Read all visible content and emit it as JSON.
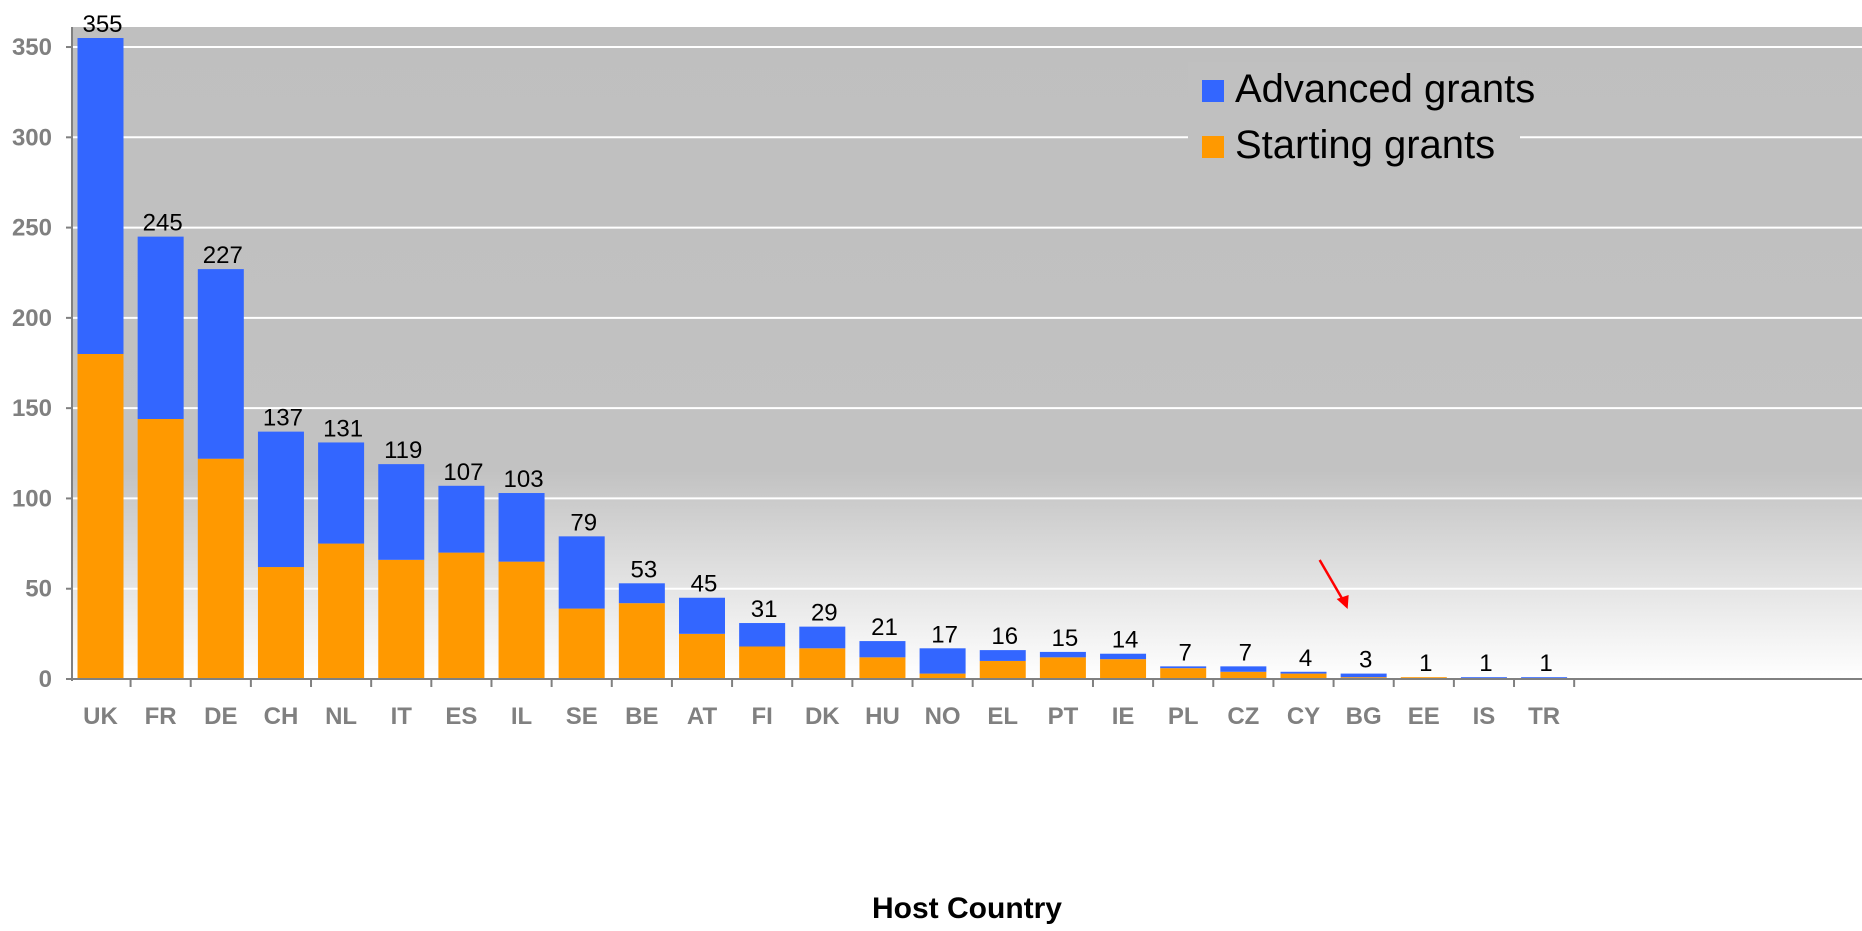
{
  "chart_data": {
    "type": "bar",
    "stacked": true,
    "title": "",
    "xlabel": "Host Country",
    "ylabel": "",
    "ylim": [
      0,
      355
    ],
    "yticks": [
      0,
      50,
      100,
      150,
      200,
      250,
      300,
      350
    ],
    "grid": true,
    "legend_position": "top-right",
    "categories": [
      "UK",
      "FR",
      "DE",
      "CH",
      "NL",
      "IT",
      "ES",
      "IL",
      "SE",
      "BE",
      "AT",
      "FI",
      "DK",
      "HU",
      "NO",
      "EL",
      "PT",
      "IE",
      "PL",
      "CZ",
      "CY",
      "BG",
      "EE",
      "IS",
      "TR"
    ],
    "totals": [
      355,
      245,
      227,
      137,
      131,
      119,
      107,
      103,
      79,
      53,
      45,
      31,
      29,
      21,
      17,
      16,
      15,
      14,
      7,
      7,
      4,
      3,
      1,
      1,
      1
    ],
    "series": [
      {
        "name": "Starting grants",
        "color": "#ff9900",
        "values": [
          180,
          144,
          122,
          62,
          75,
          66,
          70,
          65,
          39,
          42,
          25,
          18,
          17,
          12,
          3,
          10,
          12,
          11,
          6,
          4,
          3,
          1,
          1,
          0,
          0
        ]
      },
      {
        "name": "Advanced grants",
        "color": "#3366ff",
        "values": [
          175,
          101,
          105,
          75,
          56,
          53,
          37,
          38,
          40,
          11,
          20,
          13,
          12,
          9,
          14,
          6,
          3,
          3,
          1,
          3,
          1,
          2,
          0,
          1,
          1
        ]
      }
    ],
    "legend_order": [
      "Advanced grants",
      "Starting grants"
    ],
    "annotation": {
      "type": "arrow",
      "color": "#ff0000",
      "points_to": "BG"
    },
    "colors": {
      "plot_top": "#c0c0c0",
      "plot_bottom": "#ffffff",
      "grid": "#ffffff",
      "tick_text": "#808080"
    }
  }
}
